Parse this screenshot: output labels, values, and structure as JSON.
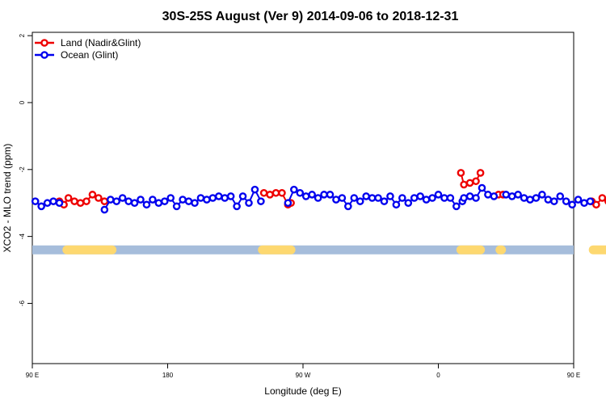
{
  "chart_data": {
    "type": "line",
    "title": "30S-25S August (Ver 9)   2014-09-06 to 2018-12-31",
    "xlabel": "Longitude (deg E)",
    "ylabel": "XCO2 - MLO trend (ppm)",
    "xlim": [
      90,
      450
    ],
    "ylim": [
      -7.8,
      2.1
    ],
    "x_ticks": [
      {
        "value": 90,
        "label": "90 E"
      },
      {
        "value": 180,
        "label": "180"
      },
      {
        "value": 270,
        "label": "90 W"
      },
      {
        "value": 360,
        "label": "0"
      },
      {
        "value": 450,
        "label": "90 E"
      },
      {
        "value": 540,
        "label": "180"
      }
    ],
    "y_ticks": [
      {
        "value": 2,
        "label": "2"
      },
      {
        "value": 0,
        "label": "0"
      },
      {
        "value": -2,
        "label": "-2"
      },
      {
        "value": -4,
        "label": "-4"
      },
      {
        "value": -6,
        "label": "-6"
      }
    ],
    "grid": false,
    "legend_position": "top-left",
    "land_bar": {
      "y": -4.4,
      "ocean_color": "#a6bddb",
      "land_color": "#fdd870",
      "land_ranges": [
        [
          113,
          143
        ],
        [
          243,
          262
        ],
        [
          375,
          388
        ],
        [
          401,
          402
        ],
        [
          463,
          494
        ]
      ]
    },
    "series": [
      {
        "name": "Land (Nadir&Glint)",
        "color": "#ee0000",
        "segments": [
          {
            "x": [
              108,
              111,
              114,
              118,
              122,
              126,
              130,
              134,
              138
            ],
            "y": [
              -2.95,
              -3.05,
              -2.85,
              -2.95,
              -3.0,
              -2.95,
              -2.75,
              -2.85,
              -2.95
            ]
          },
          {
            "x": [
              244,
              248,
              252,
              256,
              260,
              262
            ],
            "y": [
              -2.7,
              -2.75,
              -2.7,
              -2.7,
              -3.05,
              -3.0
            ]
          },
          {
            "x": [
              375,
              377,
              381,
              385,
              388
            ],
            "y": [
              -2.1,
              -2.45,
              -2.4,
              -2.35,
              -2.1
            ]
          },
          {
            "x": [
              400,
              403
            ],
            "y": [
              -2.75,
              -2.75
            ]
          },
          {
            "x": [
              462,
              465,
              469,
              473,
              477,
              481,
              485,
              489,
              492
            ],
            "y": [
              -2.95,
              -3.05,
              -2.85,
              -2.95,
              -3.0,
              -2.95,
              -2.75,
              -2.85,
              -2.95
            ]
          }
        ]
      },
      {
        "name": "Ocean (Glint)",
        "color": "#0000ee",
        "segments": [
          {
            "x": [
              92,
              96,
              100,
              104,
              108
            ],
            "y": [
              -2.95,
              -3.1,
              -3.0,
              -2.95,
              -3.0
            ]
          },
          {
            "x": [
              138,
              142,
              146,
              150,
              154,
              158,
              162,
              166,
              170,
              174,
              178,
              182,
              186,
              190,
              194,
              198,
              202,
              206,
              210,
              214,
              218,
              222,
              226,
              230,
              234,
              238,
              242
            ],
            "y": [
              -3.2,
              -2.9,
              -2.95,
              -2.85,
              -2.95,
              -3.0,
              -2.9,
              -3.05,
              -2.9,
              -3.0,
              -2.95,
              -2.85,
              -3.1,
              -2.9,
              -2.95,
              -3.0,
              -2.85,
              -2.9,
              -2.85,
              -2.8,
              -2.85,
              -2.8,
              -3.1,
              -2.8,
              -3.0,
              -2.6,
              -2.95
            ]
          },
          {
            "x": [
              260,
              264,
              268,
              272,
              276,
              280,
              284,
              288,
              292,
              296,
              300,
              304,
              308,
              312,
              316,
              320,
              324,
              328,
              332,
              336,
              340,
              344,
              348,
              352,
              356,
              360,
              364,
              368,
              372,
              376
            ],
            "y": [
              -3.0,
              -2.6,
              -2.7,
              -2.8,
              -2.75,
              -2.85,
              -2.75,
              -2.75,
              -2.9,
              -2.85,
              -3.1,
              -2.85,
              -2.95,
              -2.8,
              -2.85,
              -2.85,
              -2.95,
              -2.8,
              -3.05,
              -2.85,
              -3.0,
              -2.85,
              -2.8,
              -2.9,
              -2.85,
              -2.75,
              -2.85,
              -2.85,
              -3.1,
              -2.95
            ]
          },
          {
            "x": [
              377,
              381,
              385,
              389,
              393,
              397
            ],
            "y": [
              -2.85,
              -2.8,
              -2.85,
              -2.55,
              -2.75,
              -2.8
            ]
          },
          {
            "x": [
              405,
              409,
              413,
              417,
              421,
              425,
              429,
              433,
              437,
              441,
              445,
              449,
              453,
              457,
              461
            ],
            "y": [
              -2.75,
              -2.8,
              -2.75,
              -2.85,
              -2.9,
              -2.85,
              -2.75,
              -2.9,
              -2.95,
              -2.8,
              -2.95,
              -3.05,
              -2.9,
              -3.0,
              -2.95
            ]
          },
          {
            "x": [
              491,
              493,
              497,
              501,
              505,
              509,
              513
            ],
            "y": [
              -3.2,
              -2.9,
              -3.0,
              -2.95,
              -2.85,
              -2.95,
              -3.0
            ]
          }
        ]
      }
    ]
  }
}
